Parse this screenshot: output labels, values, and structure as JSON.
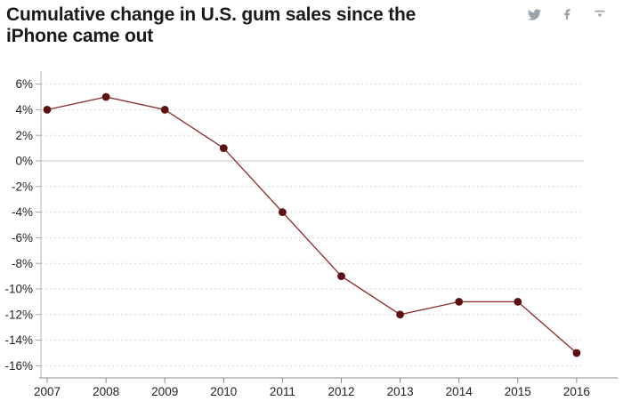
{
  "header": {
    "title_lines": [
      "Cumulative change in U.S. gum sales since the",
      "iPhone came out"
    ],
    "title_color": "#1a1a1a",
    "icons": [
      {
        "name": "twitter-share-icon"
      },
      {
        "name": "facebook-share-icon"
      },
      {
        "name": "download-image-icon"
      }
    ],
    "icon_color": "#9aa3ab"
  },
  "chart_data": {
    "type": "line",
    "title": "Cumulative change in U.S. gum sales since the iPhone came out",
    "categories": [
      "2007",
      "2008",
      "2009",
      "2010",
      "2011",
      "2012",
      "2013",
      "2014",
      "2015",
      "2016"
    ],
    "values": [
      4,
      5,
      4,
      1,
      -4,
      -9,
      -12,
      -11,
      -11,
      -15
    ],
    "unit": "%",
    "ytick_labels": [
      "6%",
      "4%",
      "2%",
      "0%",
      "-2%",
      "-4%",
      "-6%",
      "-8%",
      "-10%",
      "-12%",
      "-14%",
      "-16%"
    ],
    "ytick_values": [
      6,
      4,
      2,
      0,
      -2,
      -4,
      -6,
      -8,
      -10,
      -12,
      -14,
      -16
    ],
    "ylim": [
      -17,
      7
    ],
    "xlabel": "",
    "ylabel": "",
    "legend": "none",
    "grid_horizontal": true,
    "grid_style": "dashed, solid line at 0%",
    "line_color": "#8d2727",
    "point_color": "#5c1011",
    "grid_color": "#d6d6d6",
    "zero_line_color": "#c6c6c6",
    "x_axis_color": "#8c8c8c",
    "y_axis_color": "#b3b3b3",
    "tick_color": "#a6a6a6",
    "label_color": "#222222"
  }
}
